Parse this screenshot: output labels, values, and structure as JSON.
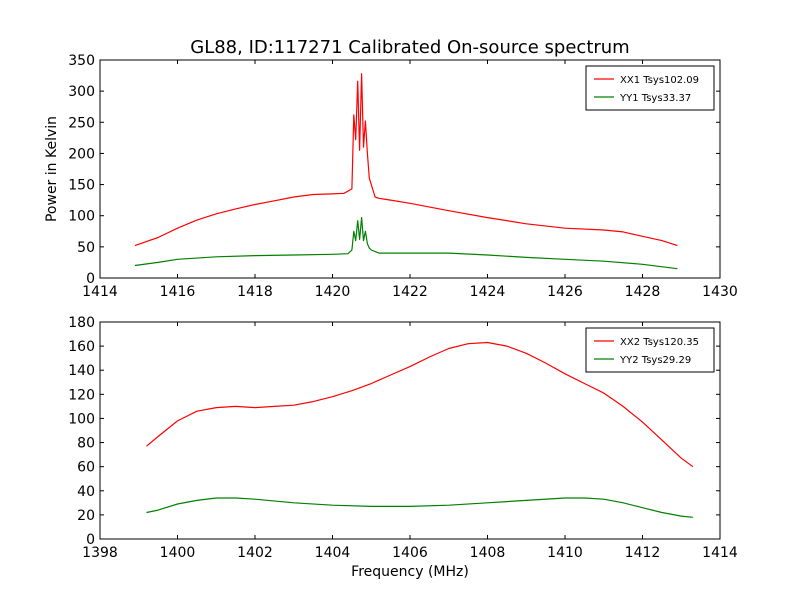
{
  "chart_data": [
    {
      "type": "line",
      "title": "GL88, ID:117271 Calibrated On-source spectrum",
      "xlabel": "",
      "ylabel": "Power in Kelvin",
      "xlim": [
        1414,
        1430
      ],
      "ylim": [
        0,
        350
      ],
      "xticks": [
        "1414",
        "1416",
        "1418",
        "1420",
        "1422",
        "1424",
        "1426",
        "1428",
        "1430"
      ],
      "yticks": [
        "0",
        "50",
        "100",
        "150",
        "200",
        "250",
        "300",
        "350"
      ],
      "legend_position": "top-right",
      "grid": false,
      "series": [
        {
          "name": "XX1 Tsys102.09",
          "color": "#ff0000",
          "x": [
            1414.9,
            1415.5,
            1416,
            1416.5,
            1417,
            1417.5,
            1418,
            1418.5,
            1419,
            1419.5,
            1420,
            1420.3,
            1420.5,
            1420.55,
            1420.6,
            1420.65,
            1420.7,
            1420.75,
            1420.8,
            1420.85,
            1420.9,
            1420.95,
            1421.0,
            1421.1,
            1421.2,
            1421.5,
            1422,
            1423,
            1424,
            1425,
            1426,
            1427,
            1427.5,
            1428,
            1428.5,
            1428.9
          ],
          "y": [
            52,
            65,
            80,
            93,
            103,
            111,
            118,
            124,
            130,
            134,
            135,
            136,
            143,
            262,
            222,
            316,
            205,
            328,
            210,
            252,
            200,
            160,
            150,
            130,
            128,
            125,
            120,
            108,
            97,
            87,
            80,
            77,
            74,
            67,
            60,
            52
          ]
        },
        {
          "name": "YY1 Tsys33.37",
          "color": "#008000",
          "x": [
            1414.9,
            1415.5,
            1416,
            1417,
            1418,
            1419,
            1420,
            1420.4,
            1420.5,
            1420.55,
            1420.6,
            1420.65,
            1420.7,
            1420.75,
            1420.8,
            1420.85,
            1420.9,
            1420.95,
            1421.0,
            1421.2,
            1422,
            1423,
            1424,
            1425,
            1426,
            1427,
            1428,
            1428.9
          ],
          "y": [
            20,
            25,
            30,
            34,
            36,
            37,
            38,
            39,
            45,
            75,
            60,
            92,
            62,
            97,
            60,
            75,
            55,
            48,
            45,
            40,
            40,
            40,
            37,
            33,
            30,
            27,
            22,
            15
          ]
        }
      ]
    },
    {
      "type": "line",
      "title": "",
      "xlabel": "Frequency (MHz)",
      "ylabel": "",
      "xlim": [
        1398,
        1414
      ],
      "ylim": [
        0,
        180
      ],
      "xticks": [
        "1398",
        "1400",
        "1402",
        "1404",
        "1406",
        "1408",
        "1410",
        "1412",
        "1414"
      ],
      "yticks": [
        "0",
        "20",
        "40",
        "60",
        "80",
        "100",
        "120",
        "140",
        "160",
        "180"
      ],
      "legend_position": "top-right",
      "grid": false,
      "series": [
        {
          "name": "XX2 Tsys120.35",
          "color": "#ff0000",
          "x": [
            1399.2,
            1399.5,
            1400,
            1400.5,
            1401,
            1401.5,
            1402,
            1402.5,
            1403,
            1403.5,
            1404,
            1404.5,
            1405,
            1405.5,
            1406,
            1406.5,
            1407,
            1407.5,
            1408,
            1408.5,
            1409,
            1409.5,
            1410,
            1410.5,
            1411,
            1411.5,
            1412,
            1412.5,
            1413,
            1413.3
          ],
          "y": [
            77,
            85,
            98,
            106,
            109,
            110,
            109,
            110,
            111,
            114,
            118,
            123,
            129,
            136,
            143,
            151,
            158,
            162,
            163,
            160,
            154,
            146,
            137,
            129,
            121,
            110,
            97,
            82,
            67,
            60
          ]
        },
        {
          "name": "YY2 Tsys29.29",
          "color": "#008000",
          "x": [
            1399.2,
            1399.5,
            1400,
            1400.5,
            1401,
            1401.5,
            1402,
            1403,
            1404,
            1405,
            1406,
            1407,
            1408,
            1409,
            1410,
            1410.5,
            1411,
            1411.5,
            1412,
            1412.5,
            1413,
            1413.3
          ],
          "y": [
            22,
            24,
            29,
            32,
            34,
            34,
            33,
            30,
            28,
            27,
            27,
            28,
            30,
            32,
            34,
            34,
            33,
            30,
            26,
            22,
            19,
            18
          ]
        }
      ]
    }
  ]
}
